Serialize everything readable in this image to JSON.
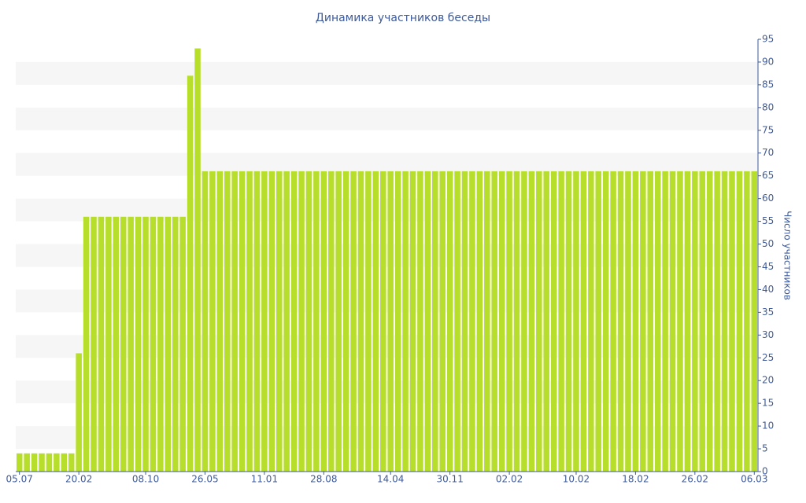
{
  "chart_data": {
    "type": "bar",
    "title": "Динамика участников беседы",
    "y_label": "Число участников",
    "categories": [
      "05.07",
      null,
      null,
      null,
      null,
      null,
      null,
      null,
      "20.02",
      null,
      null,
      null,
      null,
      null,
      null,
      null,
      null,
      "08.10",
      null,
      null,
      null,
      null,
      null,
      null,
      null,
      "26.05",
      null,
      null,
      null,
      null,
      null,
      null,
      null,
      "11.01",
      null,
      null,
      null,
      null,
      null,
      null,
      null,
      "28.08",
      null,
      null,
      null,
      null,
      null,
      null,
      null,
      null,
      "14.04",
      null,
      null,
      null,
      null,
      null,
      null,
      null,
      "30.11",
      null,
      null,
      null,
      null,
      null,
      null,
      null,
      "02.02",
      null,
      null,
      null,
      null,
      null,
      null,
      null,
      null,
      "10.02",
      null,
      null,
      null,
      null,
      null,
      null,
      null,
      "18.02",
      null,
      null,
      null,
      null,
      null,
      null,
      null,
      "26.02",
      null,
      null,
      null,
      null,
      null,
      null,
      null,
      "06.03"
    ],
    "values": [
      4,
      4,
      4,
      4,
      4,
      4,
      4,
      4,
      26,
      56,
      56,
      56,
      56,
      56,
      56,
      56,
      56,
      56,
      56,
      56,
      56,
      56,
      56,
      87,
      93,
      66,
      66,
      66,
      66,
      66,
      66,
      66,
      66,
      66,
      66,
      66,
      66,
      66,
      66,
      66,
      66,
      66,
      66,
      66,
      66,
      66,
      66,
      66,
      66,
      66,
      66,
      66,
      66,
      66,
      66,
      66,
      66,
      66,
      66,
      66,
      66,
      66,
      66,
      66,
      66,
      66,
      66,
      66,
      66,
      66,
      66,
      66,
      66,
      66,
      66,
      66,
      66,
      66,
      66,
      66,
      66,
      66,
      66,
      66,
      66,
      66,
      66,
      66,
      66,
      66,
      66,
      66,
      66,
      66,
      66,
      66,
      66,
      66,
      66,
      66
    ],
    "color": "#b8de2c",
    "ylim": [
      0,
      95
    ],
    "yticks": [
      0,
      5,
      10,
      15,
      20,
      25,
      30,
      35,
      40,
      45,
      50,
      55,
      60,
      65,
      70,
      75,
      80,
      85,
      90,
      95
    ],
    "grid": "bands",
    "y_axis_side": "right"
  }
}
